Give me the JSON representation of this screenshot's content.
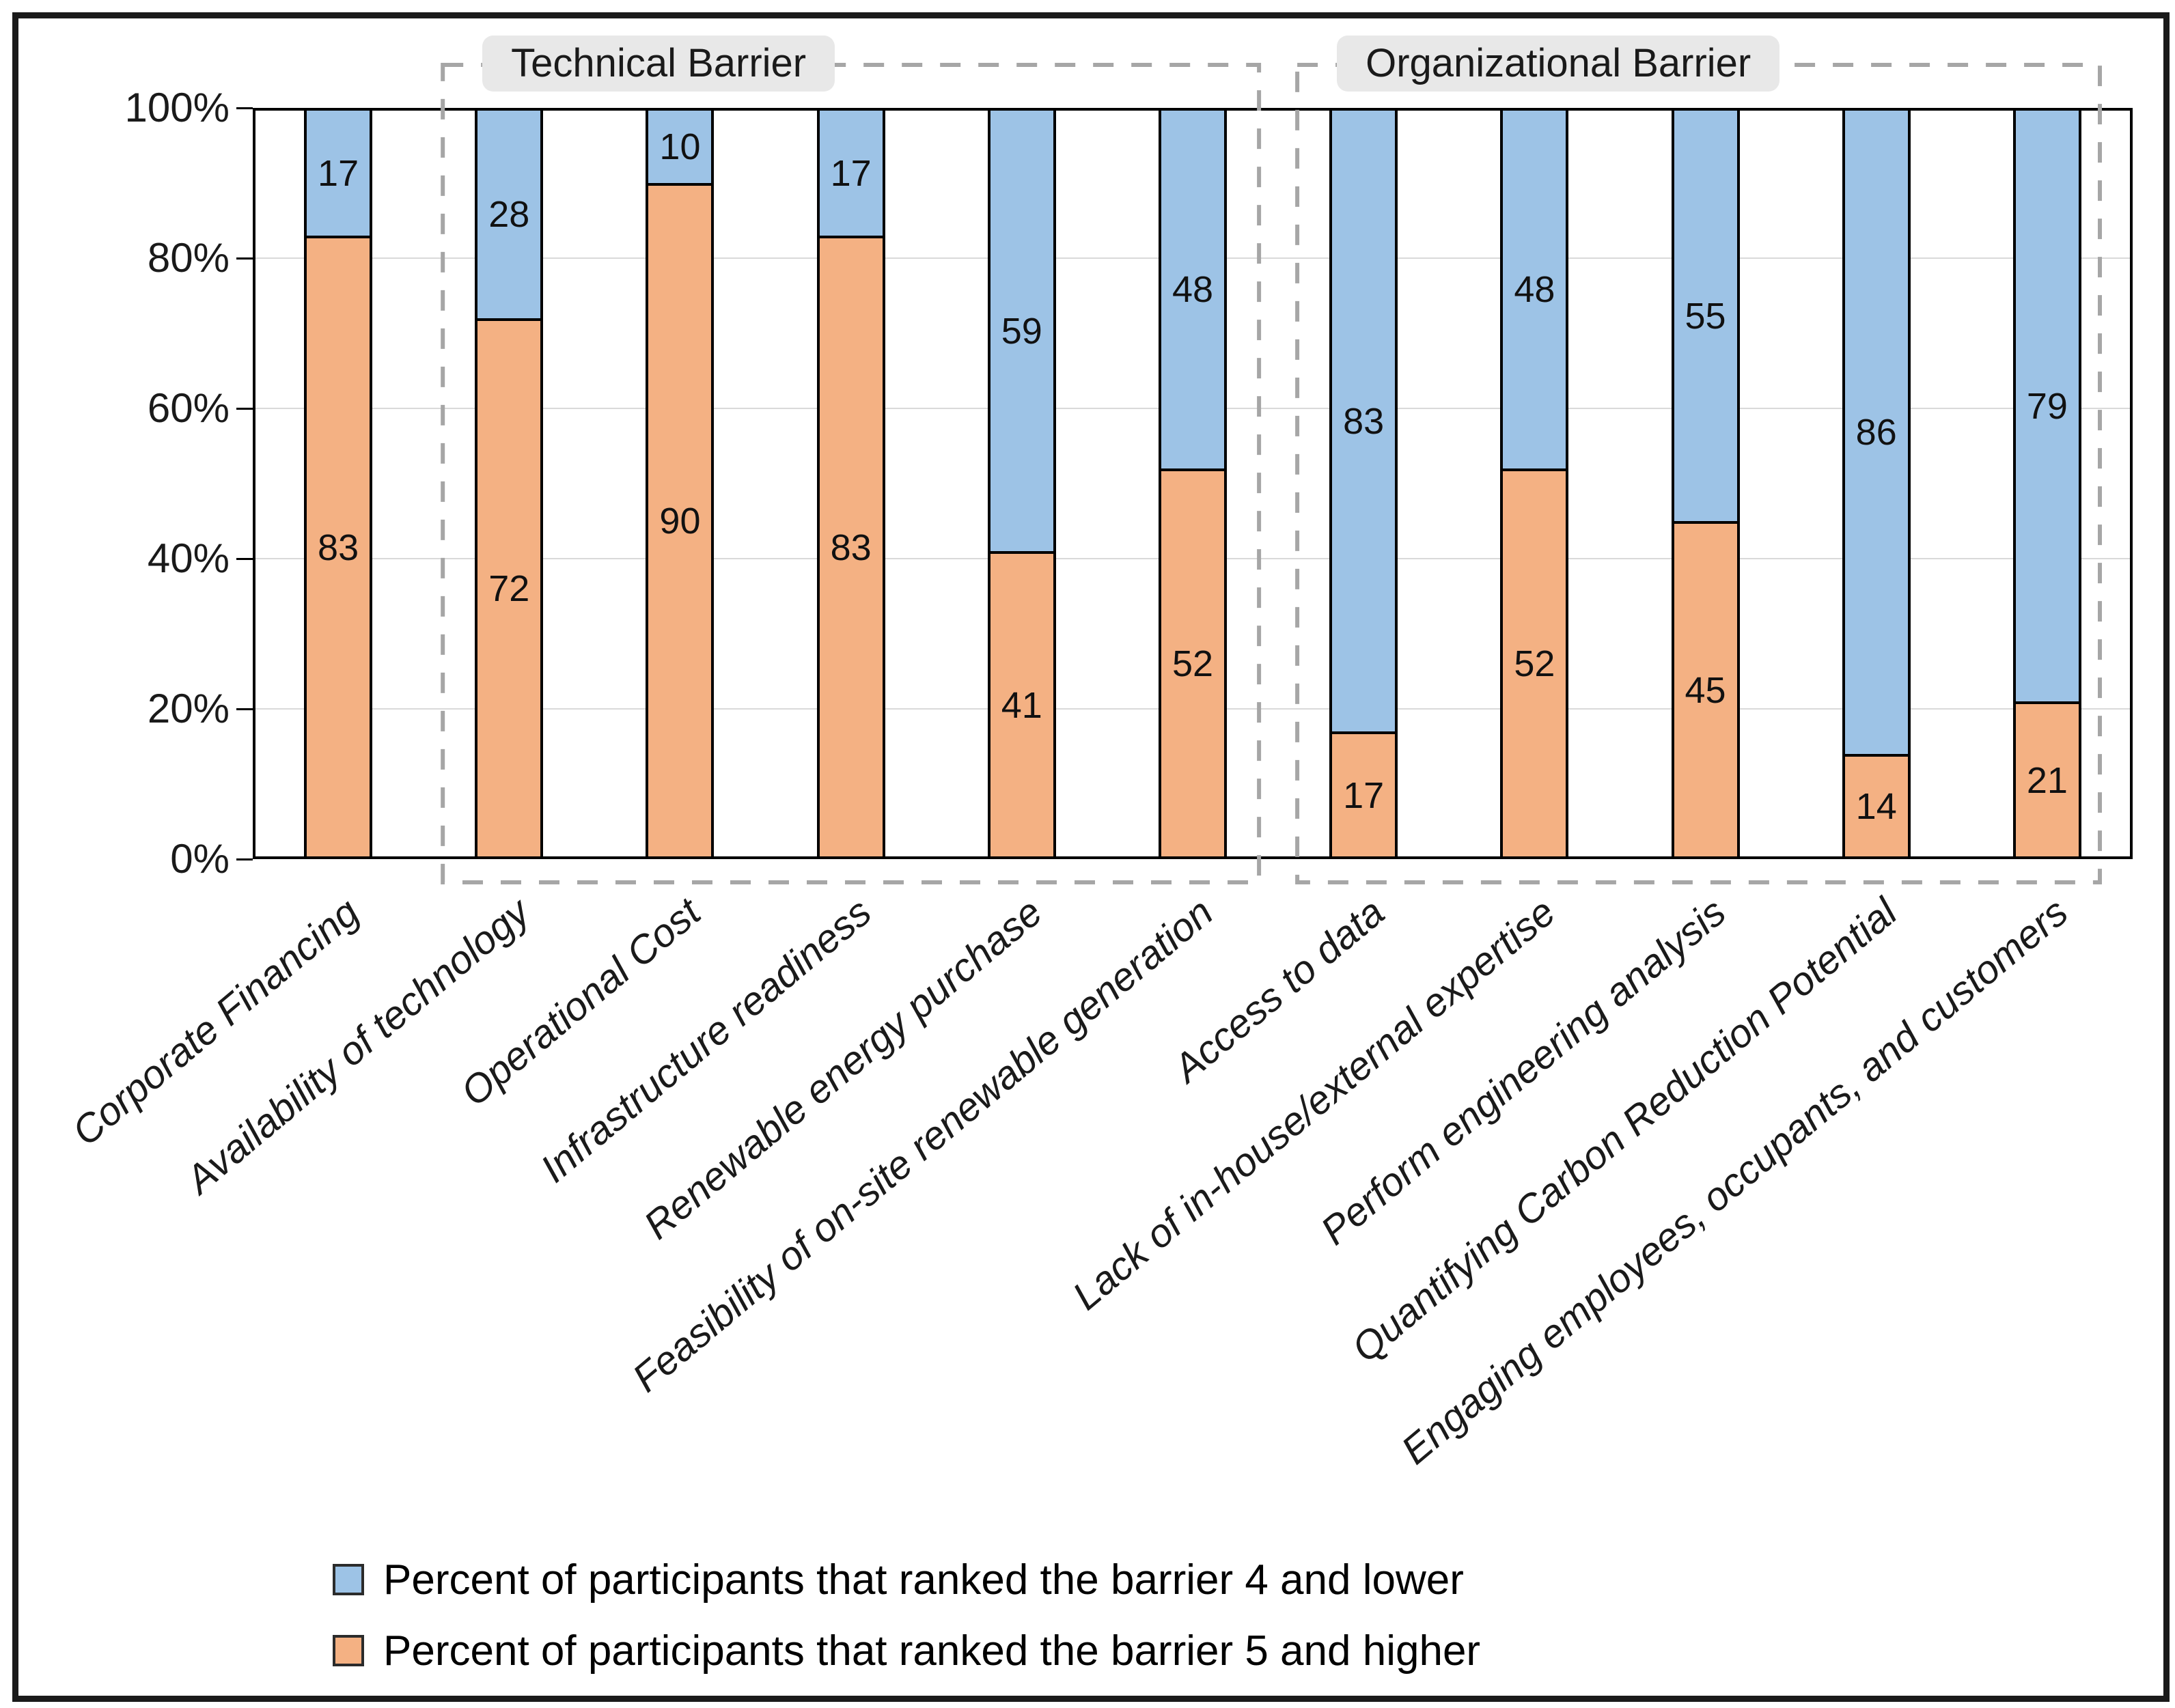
{
  "chart_data": {
    "type": "bar",
    "stacked": true,
    "categories": [
      "Corporate Financing",
      "Availability of technology",
      "Operational Cost",
      "Infrastructure readiness",
      "Renewable energy purchase",
      "Feasibility of on-site renewable generation",
      "Access to data",
      "Lack of in-house/external expertise",
      "Perform engineering analysis",
      "Quantifying Carbon Reduction Potential",
      "Engaging employees, occupants, and customers"
    ],
    "series": [
      {
        "name": "Percent of participants that ranked the barrier 5 and higher",
        "color": "#F4B183",
        "position": "bottom",
        "values": [
          83,
          72,
          90,
          83,
          41,
          52,
          17,
          52,
          45,
          14,
          21
        ]
      },
      {
        "name": "Percent of participants that ranked the barrier 4 and lower",
        "color": "#9DC3E6",
        "position": "top",
        "values": [
          17,
          28,
          10,
          17,
          59,
          48,
          83,
          48,
          55,
          86,
          79
        ]
      }
    ],
    "y_axis": {
      "min": 0,
      "max": 100,
      "ticks": [
        {
          "label": "0%",
          "value": 0
        },
        {
          "label": "20%",
          "value": 20
        },
        {
          "label": "40%",
          "value": 40
        },
        {
          "label": "60%",
          "value": 60
        },
        {
          "label": "80%",
          "value": 80
        },
        {
          "label": "100%",
          "value": 100
        }
      ],
      "grid": true
    },
    "groups": [
      {
        "label": "Technical Barrier",
        "from_category": 2,
        "to_category": 6
      },
      {
        "label": "Organizational Barrier",
        "from_category": 7,
        "to_category": 11
      }
    ],
    "legend_position": "bottom"
  }
}
